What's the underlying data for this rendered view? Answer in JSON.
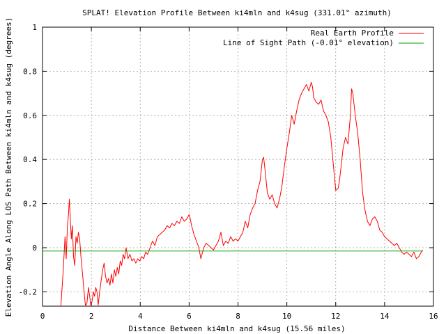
{
  "chart_data": {
    "type": "line",
    "title": "SPLAT! Elevation Profile Between ki4mln and k4sug (331.01° azimuth)",
    "xlabel": "Distance Between ki4mln and k4sug (15.56 miles)",
    "ylabel": "Elevation Angle Along LOS Path Between ki4mln and k4sug (degrees)",
    "xlim": [
      0,
      16
    ],
    "ylim": [
      -0.265,
      1
    ],
    "x_ticks": [
      0,
      2,
      4,
      6,
      8,
      10,
      12,
      14,
      16
    ],
    "y_ticks": [
      -0.2,
      0,
      0.2,
      0.4,
      0.6,
      0.8,
      1
    ],
    "x_tick_labels": [
      "0",
      "2",
      "4",
      "6",
      "8",
      "10",
      "12",
      "14",
      "16"
    ],
    "y_tick_labels": [
      "-0.2",
      "0",
      "0.2",
      "0.4",
      "0.6",
      "0.8",
      "1"
    ],
    "grid": true,
    "legend_position": "top-right",
    "series": [
      {
        "name": "Real Earth Profile",
        "color": "#ff0000",
        "x": [
          0.75,
          0.85,
          0.92,
          0.97,
          1.02,
          1.06,
          1.1,
          1.14,
          1.18,
          1.22,
          1.27,
          1.32,
          1.37,
          1.42,
          1.47,
          1.52,
          1.58,
          1.64,
          1.7,
          1.76,
          1.82,
          1.88,
          1.93,
          1.98,
          2.03,
          2.08,
          2.13,
          2.18,
          2.23,
          2.28,
          2.34,
          2.4,
          2.46,
          2.52,
          2.58,
          2.64,
          2.7,
          2.76,
          2.82,
          2.88,
          2.94,
          3.0,
          3.06,
          3.12,
          3.18,
          3.24,
          3.3,
          3.36,
          3.42,
          3.5,
          3.58,
          3.66,
          3.74,
          3.82,
          3.9,
          3.98,
          4.06,
          4.14,
          4.22,
          4.3,
          4.4,
          4.5,
          4.6,
          4.7,
          4.8,
          4.9,
          5.0,
          5.1,
          5.2,
          5.3,
          5.4,
          5.5,
          5.6,
          5.7,
          5.8,
          5.9,
          6.0,
          6.05,
          6.1,
          6.2,
          6.3,
          6.4,
          6.48,
          6.55,
          6.6,
          6.7,
          6.8,
          6.9,
          7.0,
          7.1,
          7.2,
          7.3,
          7.4,
          7.5,
          7.6,
          7.7,
          7.8,
          7.9,
          8.0,
          8.1,
          8.2,
          8.3,
          8.4,
          8.5,
          8.6,
          8.7,
          8.8,
          8.9,
          9.0,
          9.05,
          9.1,
          9.2,
          9.3,
          9.4,
          9.5,
          9.6,
          9.7,
          9.8,
          9.9,
          10.0,
          10.1,
          10.2,
          10.3,
          10.4,
          10.5,
          10.6,
          10.7,
          10.8,
          10.9,
          11.0,
          11.05,
          11.1,
          11.2,
          11.3,
          11.4,
          11.5,
          11.6,
          11.7,
          11.8,
          11.9,
          12.0,
          12.1,
          12.15,
          12.2,
          12.3,
          12.4,
          12.5,
          12.6,
          12.65,
          12.7,
          12.8,
          12.9,
          13.0,
          13.1,
          13.2,
          13.3,
          13.4,
          13.5,
          13.6,
          13.7,
          13.8,
          13.9,
          14.0,
          14.1,
          14.2,
          14.3,
          14.4,
          14.5,
          14.6,
          14.7,
          14.8,
          14.9,
          15.0,
          15.1,
          15.2,
          15.3,
          15.4,
          15.5,
          15.56
        ],
        "y": [
          -0.265,
          -0.1,
          0.05,
          -0.05,
          0.1,
          0.15,
          0.22,
          0.12,
          0.04,
          0.1,
          -0.04,
          -0.08,
          0.05,
          0.02,
          0.07,
          0.04,
          -0.05,
          -0.12,
          -0.2,
          -0.265,
          -0.25,
          -0.18,
          -0.22,
          -0.265,
          -0.24,
          -0.2,
          -0.22,
          -0.18,
          -0.2,
          -0.26,
          -0.2,
          -0.15,
          -0.1,
          -0.07,
          -0.13,
          -0.16,
          -0.14,
          -0.17,
          -0.12,
          -0.16,
          -0.1,
          -0.13,
          -0.09,
          -0.12,
          -0.06,
          -0.08,
          -0.03,
          -0.05,
          0.0,
          -0.05,
          -0.03,
          -0.06,
          -0.05,
          -0.07,
          -0.05,
          -0.06,
          -0.04,
          -0.05,
          -0.02,
          -0.03,
          0.0,
          0.03,
          0.01,
          0.05,
          0.06,
          0.07,
          0.08,
          0.1,
          0.09,
          0.11,
          0.1,
          0.12,
          0.11,
          0.14,
          0.12,
          0.13,
          0.15,
          0.13,
          0.1,
          0.06,
          0.03,
          0.0,
          -0.05,
          -0.02,
          0.0,
          0.02,
          0.01,
          0.0,
          -0.01,
          0.01,
          0.03,
          0.07,
          0.01,
          0.03,
          0.02,
          0.05,
          0.03,
          0.04,
          0.03,
          0.05,
          0.07,
          0.12,
          0.09,
          0.15,
          0.18,
          0.2,
          0.26,
          0.3,
          0.4,
          0.41,
          0.36,
          0.25,
          0.22,
          0.24,
          0.2,
          0.18,
          0.22,
          0.28,
          0.37,
          0.45,
          0.52,
          0.6,
          0.56,
          0.62,
          0.67,
          0.7,
          0.72,
          0.74,
          0.71,
          0.75,
          0.73,
          0.68,
          0.66,
          0.65,
          0.67,
          0.62,
          0.6,
          0.57,
          0.5,
          0.38,
          0.26,
          0.27,
          0.3,
          0.35,
          0.45,
          0.5,
          0.47,
          0.6,
          0.72,
          0.7,
          0.6,
          0.52,
          0.4,
          0.25,
          0.17,
          0.12,
          0.1,
          0.13,
          0.14,
          0.12,
          0.08,
          0.07,
          0.05,
          0.04,
          0.03,
          0.02,
          0.01,
          0.02,
          0.0,
          -0.02,
          -0.03,
          -0.02,
          -0.03,
          -0.04,
          -0.02,
          -0.05,
          -0.04,
          -0.02,
          -0.01
        ]
      },
      {
        "name": "Line of Sight Path (-0.01° elevation)",
        "color": "#00a000",
        "x": [
          0,
          15.56
        ],
        "y": [
          -0.015,
          -0.015
        ]
      }
    ]
  }
}
